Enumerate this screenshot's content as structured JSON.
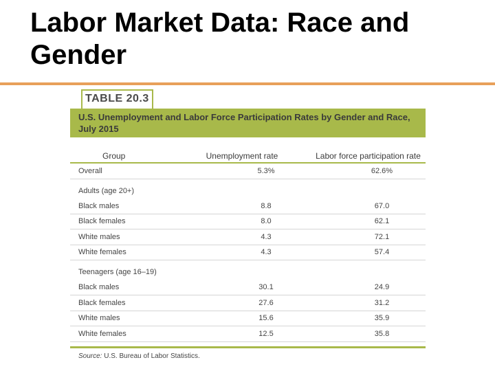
{
  "slide": {
    "title": "Labor Market Data: Race and Gender"
  },
  "table": {
    "label": "TABLE 20.3",
    "caption": "U.S. Unemployment and Labor Force Participation Rates by Gender and Race, July 2015",
    "headers": {
      "group": "Group",
      "unemployment": "Unemployment rate",
      "participation": "Labor force participation rate"
    },
    "overall": {
      "group": "Overall",
      "unemployment": "5.3%",
      "participation": "62.6%"
    },
    "adults": {
      "heading": "Adults (age 20+)",
      "rows": [
        {
          "group": "Black males",
          "unemployment": "8.8",
          "participation": "67.0"
        },
        {
          "group": "Black females",
          "unemployment": "8.0",
          "participation": "62.1"
        },
        {
          "group": "White males",
          "unemployment": "4.3",
          "participation": "72.1"
        },
        {
          "group": "White females",
          "unemployment": "4.3",
          "participation": "57.4"
        }
      ]
    },
    "teenagers": {
      "heading": "Teenagers (age 16–19)",
      "rows": [
        {
          "group": "Black males",
          "unemployment": "30.1",
          "participation": "24.9"
        },
        {
          "group": "Black females",
          "unemployment": "27.6",
          "participation": "31.2"
        },
        {
          "group": "White males",
          "unemployment": "15.6",
          "participation": "35.9"
        },
        {
          "group": "White females",
          "unemployment": "12.5",
          "participation": "35.8"
        }
      ]
    },
    "source": {
      "label": "Source:",
      "text": "U.S. Bureau of Labor Statistics."
    }
  }
}
